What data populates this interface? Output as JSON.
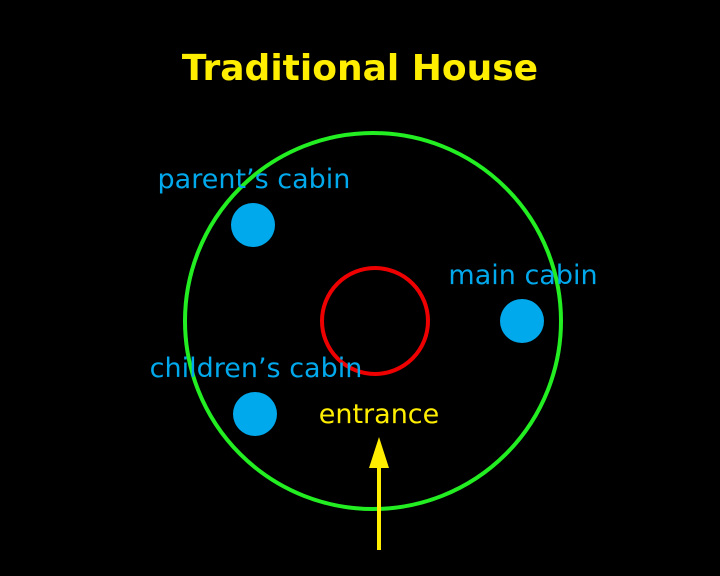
{
  "title": "Traditional House",
  "labels": {
    "parents_cabin": "parent’s cabin",
    "main_cabin": "main cabin",
    "childrens_cabin": "children’s cabin",
    "entrance": "entrance"
  },
  "colors": {
    "background": "#000000",
    "title": "#ffee00",
    "cabin": "#00a8ec",
    "outer_circle": "#22ee22",
    "inner_circle": "#ee0000",
    "entrance": "#ffee00"
  }
}
